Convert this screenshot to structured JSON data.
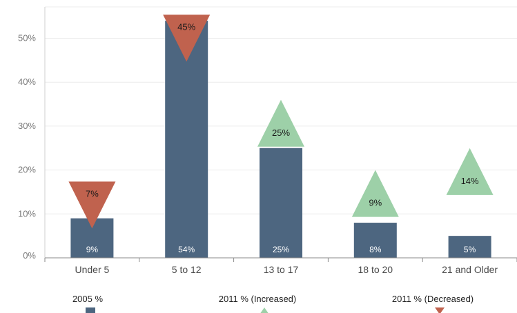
{
  "chart_data": {
    "type": "bar",
    "title": "",
    "xlabel": "",
    "ylabel": "",
    "ylim": [
      0,
      55
    ],
    "y_ticks": [
      0,
      10,
      20,
      30,
      40,
      50
    ],
    "y_tick_labels": [
      "0%",
      "10%",
      "20%",
      "30%",
      "40%",
      "50%"
    ],
    "grid": true,
    "legend_position": "bottom",
    "categories": [
      "Under 5",
      "5 to 12",
      "13 to 17",
      "18 to 20",
      "21 and Older"
    ],
    "series": [
      {
        "name": "2005 %",
        "kind": "bar",
        "color": "#4d6680",
        "values": [
          9,
          54,
          25,
          8,
          5
        ],
        "labels": [
          "9%",
          "54%",
          "25%",
          "8%",
          "5%"
        ]
      },
      {
        "name": "2011 % (Increased)",
        "kind": "triangle-up",
        "color": "#9dd0a8",
        "values": [
          null,
          null,
          25,
          9,
          14
        ],
        "labels": [
          null,
          null,
          "25%",
          "9%",
          "14%"
        ]
      },
      {
        "name": "2011 % (Decreased)",
        "kind": "triangle-down",
        "color": "#c0624e",
        "values": [
          7,
          45,
          null,
          null,
          null
        ],
        "labels": [
          "7%",
          "45%",
          null,
          null,
          null
        ]
      }
    ]
  }
}
